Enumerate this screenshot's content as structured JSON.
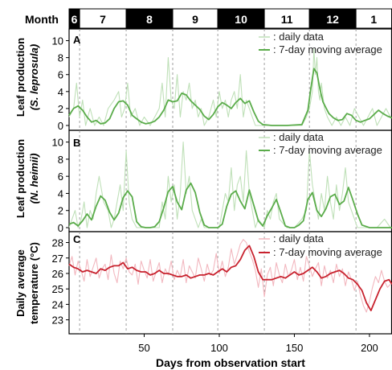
{
  "month_bar": {
    "label": "Month",
    "months": [
      {
        "label": "6",
        "start": 0,
        "end": 7,
        "dark": true
      },
      {
        "label": "7",
        "start": 7,
        "end": 38,
        "dark": false
      },
      {
        "label": "8",
        "start": 38,
        "end": 69,
        "dark": true
      },
      {
        "label": "9",
        "start": 69,
        "end": 99,
        "dark": false
      },
      {
        "label": "10",
        "start": 99,
        "end": 130,
        "dark": true
      },
      {
        "label": "11",
        "start": 130,
        "end": 160,
        "dark": false
      },
      {
        "label": "12",
        "start": 160,
        "end": 191,
        "dark": true
      },
      {
        "label": "1",
        "start": 191,
        "end": 215,
        "dark": false
      }
    ]
  },
  "chart_data": [
    {
      "type": "line",
      "panel": "A",
      "ylabel_line1": "Leaf production",
      "ylabel_line2": "(S. leprosula)",
      "xlim": [
        0,
        215
      ],
      "ylim": [
        0,
        11
      ],
      "yticks": [
        0,
        2,
        4,
        6,
        8,
        10
      ],
      "legend": ": daily data",
      "legend2": ": 7-day moving average",
      "legend_position": "top-right",
      "daily_color": "#bfe0b8",
      "avg_color": "#5aac4a",
      "series": [
        {
          "role": "daily",
          "x": [
            0,
            3,
            5,
            7,
            9,
            11,
            14,
            17,
            20,
            23,
            26,
            30,
            33,
            35,
            37,
            39,
            41,
            44,
            47,
            50,
            54,
            57,
            60,
            62,
            64,
            66,
            68,
            70,
            72,
            74,
            76,
            78,
            80,
            82,
            84,
            86,
            88,
            90,
            93,
            96,
            98,
            100,
            102,
            104,
            106,
            108,
            110,
            112,
            114,
            116,
            118,
            120,
            122,
            124,
            127,
            130,
            135,
            140,
            145,
            150,
            155,
            158,
            160,
            162,
            163,
            164,
            165,
            166,
            167,
            168,
            170,
            172,
            175,
            178,
            181,
            184,
            187,
            190,
            193,
            196,
            199,
            202,
            205,
            208,
            211,
            214
          ],
          "values": [
            1,
            2,
            5,
            1,
            3,
            0,
            2,
            0,
            1,
            0,
            2,
            3,
            4,
            1,
            2,
            5,
            1,
            2,
            0,
            1,
            0,
            1,
            2,
            5,
            1,
            8,
            3,
            2,
            6,
            1,
            4,
            3,
            5,
            2,
            3,
            1,
            2,
            0,
            1,
            3,
            1,
            4,
            2,
            3,
            1,
            3,
            4,
            2,
            6,
            1,
            3,
            2,
            1,
            0,
            0,
            0,
            0,
            0,
            0,
            0,
            0,
            1,
            2,
            4,
            9,
            6,
            8,
            4,
            3,
            5,
            2,
            1,
            0,
            1,
            0,
            1,
            0,
            2,
            1,
            0,
            1,
            2,
            0,
            1,
            2,
            1
          ]
        },
        {
          "role": "moving_average",
          "x": [
            0,
            3,
            6,
            9,
            12,
            15,
            18,
            21,
            24,
            27,
            30,
            33,
            36,
            39,
            42,
            45,
            48,
            51,
            54,
            57,
            60,
            63,
            66,
            69,
            72,
            75,
            78,
            81,
            84,
            87,
            90,
            93,
            96,
            99,
            102,
            105,
            108,
            111,
            114,
            117,
            120,
            123,
            126,
            129,
            135,
            145,
            155,
            159,
            161,
            163,
            165,
            167,
            169,
            171,
            173,
            176,
            179,
            182,
            185,
            188,
            191,
            194,
            197,
            200,
            203,
            206,
            209,
            212,
            215
          ],
          "values": [
            1.2,
            2,
            2.3,
            1.8,
            1,
            0.4,
            0.6,
            0.2,
            0.3,
            0.8,
            2,
            2.8,
            2.9,
            2.4,
            1.2,
            0.8,
            0.4,
            0.2,
            0.3,
            0.5,
            1,
            1.8,
            3,
            2.8,
            2.9,
            3.8,
            3.6,
            2.9,
            2.4,
            1.9,
            1.1,
            0.7,
            1.3,
            2.2,
            2.7,
            2.4,
            2,
            2.7,
            3.2,
            2.6,
            2.9,
            1.6,
            0.5,
            0.1,
            0,
            0,
            0.1,
            1.8,
            4.4,
            6.7,
            6.2,
            4.3,
            2.8,
            2.1,
            1.4,
            0.9,
            0.6,
            0.7,
            1.4,
            1.2,
            0.6,
            0.4,
            0.6,
            0.8,
            1.3,
            1.8,
            1.4,
            1.1,
            0.9
          ]
        }
      ]
    },
    {
      "type": "line",
      "panel": "B",
      "ylabel_line1": "Leaf production",
      "ylabel_line2": "(N. heimii)",
      "xlim": [
        0,
        215
      ],
      "ylim": [
        0,
        11
      ],
      "yticks": [
        0,
        2,
        4,
        6,
        8,
        10
      ],
      "legend": ": daily data",
      "legend2": ": 7-day moving average",
      "legend_position": "top-right",
      "daily_color": "#bfe0b8",
      "avg_color": "#5aac4a",
      "series": [
        {
          "role": "daily",
          "x": [
            0,
            2,
            4,
            6,
            8,
            10,
            12,
            14,
            16,
            18,
            20,
            23,
            26,
            28,
            30,
            32,
            34,
            36,
            38,
            40,
            42,
            45,
            50,
            55,
            60,
            62,
            64,
            66,
            68,
            70,
            72,
            74,
            76,
            78,
            80,
            82,
            84,
            86,
            88,
            90,
            95,
            100,
            102,
            104,
            106,
            108,
            110,
            112,
            114,
            116,
            118,
            120,
            122,
            124,
            126,
            130,
            132,
            134,
            136,
            138,
            140,
            145,
            150,
            155,
            158,
            160,
            162,
            164,
            166,
            168,
            170,
            172,
            174,
            176,
            178,
            180,
            182,
            184,
            186,
            188,
            190,
            192,
            195,
            200,
            205,
            210,
            214
          ],
          "values": [
            0,
            1,
            2,
            0,
            1,
            3,
            0,
            2,
            1,
            4,
            6,
            3,
            2,
            0,
            1,
            3,
            5,
            2,
            9,
            3,
            1,
            0,
            0,
            0,
            0,
            3,
            1,
            6,
            3,
            5,
            1,
            4,
            10,
            4,
            6,
            2,
            1,
            0,
            1,
            0,
            0,
            0,
            2,
            4,
            3,
            7,
            2,
            5,
            6,
            3,
            9,
            4,
            2,
            0,
            1,
            0,
            2,
            1,
            3,
            4,
            1,
            0,
            0,
            1,
            2,
            9,
            5,
            3,
            1,
            4,
            2,
            6,
            3,
            1,
            5,
            2,
            4,
            7,
            3,
            2,
            1,
            0,
            0,
            0,
            0,
            1,
            0
          ]
        },
        {
          "role": "moving_average",
          "x": [
            0,
            3,
            6,
            9,
            12,
            15,
            18,
            21,
            24,
            27,
            30,
            33,
            36,
            39,
            42,
            45,
            48,
            51,
            54,
            57,
            60,
            63,
            66,
            69,
            72,
            75,
            78,
            81,
            84,
            87,
            90,
            93,
            96,
            99,
            102,
            105,
            108,
            111,
            114,
            117,
            120,
            123,
            126,
            129,
            132,
            135,
            138,
            141,
            144,
            147,
            150,
            153,
            156,
            159,
            162,
            165,
            168,
            171,
            174,
            177,
            180,
            183,
            186,
            189,
            192,
            195,
            200,
            205,
            210,
            215
          ],
          "values": [
            0.4,
            0.6,
            0.2,
            0.8,
            1.6,
            0.9,
            2.5,
            3.7,
            3.2,
            1.8,
            0.9,
            1.7,
            3.5,
            4.3,
            3.6,
            0.7,
            0.1,
            0,
            0,
            0.1,
            0.7,
            2.3,
            4.2,
            4.8,
            3,
            2.1,
            4.4,
            5.2,
            4.1,
            1.8,
            0.3,
            0,
            0,
            0,
            0.4,
            2.5,
            3.9,
            4.3,
            3.1,
            2.2,
            4.4,
            2.6,
            0.8,
            0.2,
            1.4,
            2.3,
            3.3,
            1.8,
            0.2,
            0,
            0,
            0.3,
            0.8,
            3.3,
            4.1,
            2,
            1.3,
            2.2,
            3.6,
            3.9,
            2.7,
            3.1,
            4.7,
            3.2,
            1.6,
            0.3,
            0,
            0,
            0,
            0
          ]
        }
      ]
    },
    {
      "type": "line",
      "panel": "C",
      "ylabel_line1": "Daily average",
      "ylabel_line2": "temperature (°C)",
      "xlabel": "Days from observation start",
      "xlim": [
        0,
        215
      ],
      "ylim": [
        22.2,
        28.6
      ],
      "xticks": [
        50,
        100,
        150,
        200
      ],
      "yticks": [
        23,
        24,
        25,
        26,
        27,
        28
      ],
      "legend": ": daily data",
      "legend2": ": 7-day moving average",
      "legend_position": "top-right",
      "daily_color": "#f2b7bf",
      "avg_color": "#c8222e",
      "series": [
        {
          "role": "daily",
          "x": [
            0,
            2,
            4,
            6,
            8,
            10,
            12,
            14,
            16,
            18,
            20,
            22,
            24,
            26,
            28,
            30,
            32,
            34,
            36,
            38,
            40,
            42,
            44,
            46,
            48,
            50,
            52,
            54,
            56,
            58,
            60,
            62,
            64,
            66,
            68,
            70,
            72,
            74,
            76,
            78,
            80,
            82,
            84,
            86,
            88,
            90,
            92,
            94,
            96,
            98,
            100,
            102,
            104,
            106,
            108,
            110,
            112,
            114,
            116,
            118,
            120,
            122,
            124,
            126,
            128,
            130,
            132,
            134,
            136,
            138,
            140,
            142,
            144,
            146,
            148,
            150,
            152,
            154,
            156,
            158,
            160,
            162,
            164,
            166,
            168,
            170,
            172,
            174,
            176,
            178,
            180,
            182,
            184,
            186,
            188,
            190,
            192,
            194,
            196,
            198,
            200,
            202,
            204,
            206,
            208,
            210,
            212,
            214
          ],
          "values": [
            26.5,
            27.1,
            25.9,
            26.8,
            26.2,
            25.5,
            26.9,
            25.8,
            26.4,
            27,
            25.7,
            26.3,
            26.6,
            25.6,
            27.2,
            26,
            25.4,
            26.8,
            26.3,
            27,
            26.1,
            25.9,
            26.6,
            25.3,
            26.8,
            26.2,
            25.7,
            26.9,
            25.5,
            26.1,
            26.7,
            25.4,
            26.3,
            25.9,
            26.8,
            25.6,
            26.2,
            25.8,
            26.9,
            25.4,
            26.5,
            26.1,
            25.7,
            27,
            26.3,
            25.5,
            26.6,
            25.9,
            26.2,
            27.3,
            26,
            26.8,
            25.8,
            26.4,
            27.6,
            26.6,
            27.2,
            27.9,
            28.2,
            28,
            27.4,
            26.9,
            26.2,
            25.1,
            26.3,
            24.5,
            25.9,
            26.4,
            25.2,
            26.7,
            25.9,
            25.4,
            26.6,
            25.8,
            26.2,
            26.9,
            25.6,
            26.4,
            25.5,
            27.1,
            26.5,
            25.8,
            26.3,
            26.7,
            25.2,
            26.5,
            25.7,
            26.2,
            25.4,
            26.6,
            25.8,
            26.3,
            25.2,
            26.1,
            25.6,
            24.9,
            25.5,
            24.6,
            23.9,
            23.5,
            24.2,
            25.1,
            25.8,
            25.4,
            26.2,
            25.5,
            25.1,
            25.3
          ]
        },
        {
          "role": "moving_average",
          "x": [
            0,
            3,
            6,
            9,
            12,
            15,
            18,
            21,
            24,
            27,
            30,
            33,
            36,
            39,
            42,
            45,
            48,
            51,
            54,
            57,
            60,
            63,
            66,
            69,
            72,
            75,
            78,
            81,
            84,
            87,
            90,
            93,
            96,
            99,
            102,
            105,
            108,
            111,
            114,
            117,
            120,
            123,
            126,
            129,
            132,
            135,
            138,
            141,
            144,
            147,
            150,
            153,
            156,
            159,
            162,
            165,
            168,
            171,
            174,
            177,
            180,
            183,
            186,
            189,
            192,
            195,
            198,
            201,
            204,
            207,
            210,
            213,
            215
          ],
          "values": [
            26.6,
            26.4,
            26.3,
            26.1,
            26.2,
            26.1,
            26,
            26.3,
            26.2,
            26.4,
            26.5,
            26.5,
            26.7,
            26.3,
            26.4,
            26.2,
            26.1,
            26.1,
            25.9,
            26,
            26.2,
            26,
            26,
            25.9,
            25.8,
            25.8,
            25.9,
            25.7,
            25.8,
            25.9,
            25.9,
            26,
            25.9,
            26.1,
            26.3,
            26.1,
            26.4,
            26.5,
            26.9,
            27.5,
            27.8,
            27.1,
            26.1,
            25.6,
            25.6,
            25.6,
            25.7,
            25.8,
            25.7,
            25.9,
            26.1,
            25.9,
            26,
            26.2,
            26.4,
            26.1,
            25.7,
            25.8,
            26,
            26.1,
            26.2,
            26,
            25.7,
            25.6,
            25.3,
            24.9,
            24.1,
            23.6,
            24.3,
            25,
            25.5,
            25.6,
            25.3
          ]
        }
      ]
    }
  ]
}
